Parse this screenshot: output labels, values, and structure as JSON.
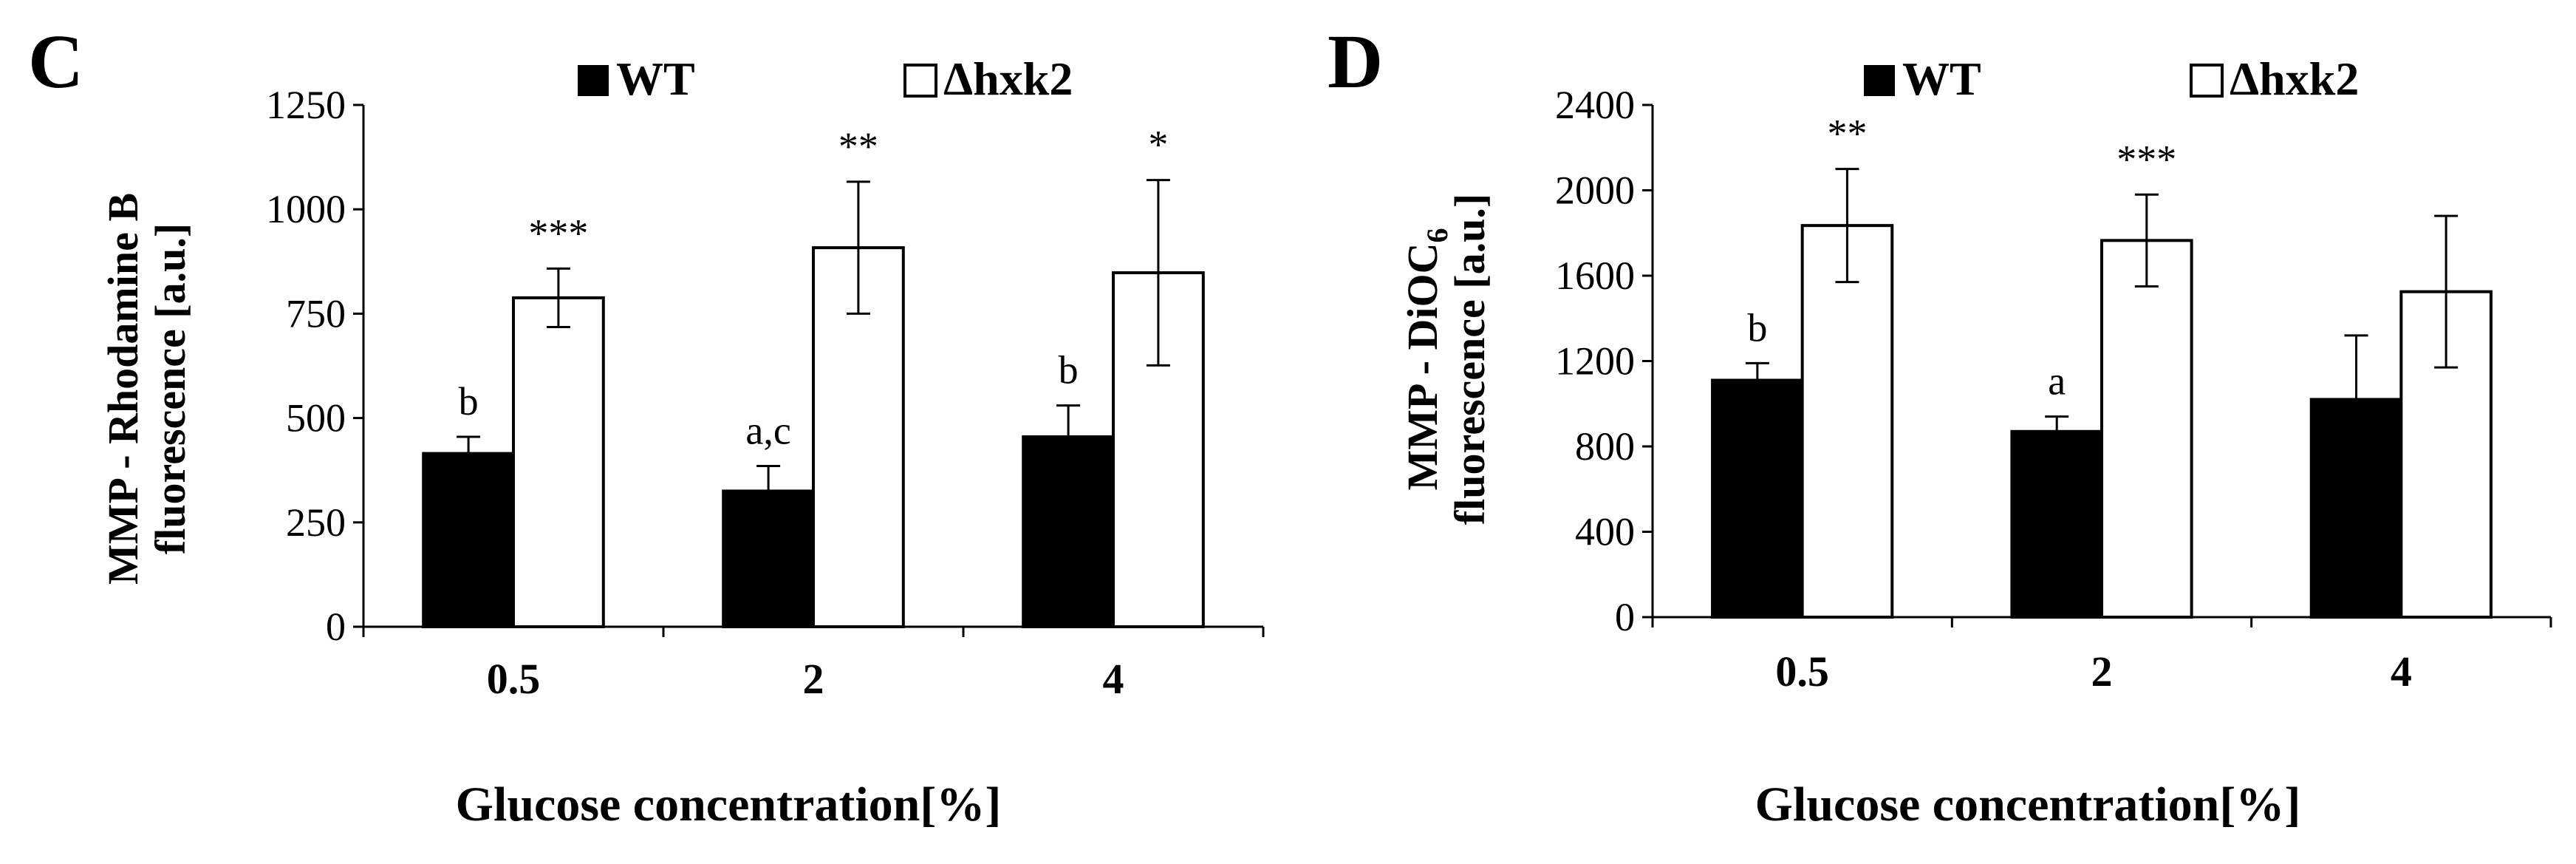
{
  "chart_data": [
    {
      "type": "bar",
      "panel_label": "C",
      "categories": [
        "0.5",
        "2",
        "4"
      ],
      "series": [
        {
          "name": "WT",
          "values": [
            415,
            325,
            455
          ],
          "errors": [
            40,
            60,
            75
          ],
          "annotations": [
            "b",
            "a,c",
            "b"
          ]
        },
        {
          "name": "Δhxk2",
          "values": [
            788,
            908,
            848
          ],
          "errors": [
            70,
            158,
            222
          ],
          "annotations": [
            "***",
            "**",
            "*"
          ]
        }
      ],
      "legend": [
        "WT",
        "Δhxk2"
      ],
      "xlabel": "Glucose concentration[%]",
      "ylabel_line1": "MMP  - Rhodamine B",
      "ylabel_line2": "fluorescence [a.u.]",
      "ylabel_subscript": "",
      "yticks": [
        "0",
        "250",
        "500",
        "750",
        "1000",
        "1250"
      ],
      "ylim": [
        0,
        1250
      ]
    },
    {
      "type": "bar",
      "panel_label": "D",
      "categories": [
        "0.5",
        "2",
        "4"
      ],
      "series": [
        {
          "name": "WT",
          "values": [
            1110,
            870,
            1020
          ],
          "errors": [
            80,
            70,
            300
          ],
          "annotations": [
            "b",
            "a",
            ""
          ]
        },
        {
          "name": "Δhxk2",
          "values": [
            1835,
            1765,
            1525
          ],
          "errors": [
            265,
            215,
            355
          ],
          "annotations": [
            "**",
            "***",
            ""
          ]
        }
      ],
      "legend": [
        "WT",
        "Δhxk2"
      ],
      "xlabel": "Glucose concentration[%]",
      "ylabel_line1": "MMP  - DiOC",
      "ylabel_line2": "fluorescence [a.u.]",
      "ylabel_subscript": "6",
      "yticks": [
        "0",
        "400",
        "800",
        "1200",
        "1600",
        "2000",
        "2400"
      ],
      "ylim": [
        0,
        2400
      ]
    }
  ],
  "colors": {
    "wt": "#000000",
    "hxk2": "#ffffff",
    "stroke": "#000000"
  }
}
